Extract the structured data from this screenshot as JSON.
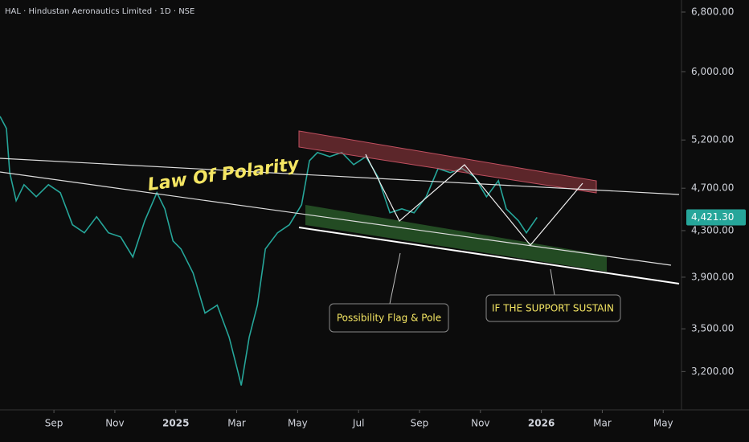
{
  "chart_data": {
    "type": "line",
    "title": "HAL · Hindustan Aeronautics Limited · 1D · NSE",
    "annotations": [
      "Law Of Polarity",
      "Possibility Flag & Pole",
      "IF THE SUPPORT SUSTAIN"
    ],
    "color": "#26a69a",
    "log_scale": true,
    "x": [
      -1.77,
      -1.56,
      -1.45,
      -1.24,
      -0.98,
      -0.58,
      -0.18,
      0.21,
      0.61,
      1.0,
      1.4,
      1.79,
      2.19,
      2.59,
      2.98,
      3.38,
      3.64,
      3.91,
      4.17,
      4.57,
      4.96,
      5.36,
      5.75,
      6.02,
      6.15,
      6.41,
      6.68,
      6.94,
      7.34,
      7.73,
      8.13,
      8.39,
      8.65,
      9.05,
      9.45,
      9.84,
      10.24,
      10.63,
      11.03,
      11.42,
      11.82,
      12.22,
      12.61,
      13.01,
      13.4,
      13.8,
      14.2,
      14.59,
      14.85,
      15.25,
      15.51,
      15.78,
      15.86
    ],
    "values": [
      5464,
      5327,
      4856,
      4578,
      4735,
      4617,
      4735,
      4656,
      4353,
      4280,
      4427,
      4280,
      4244,
      4069,
      4389,
      4656,
      4501,
      4208,
      4138,
      3934,
      3617,
      3678,
      3439,
      3215,
      3108,
      3439,
      3678,
      4138,
      4280,
      4353,
      4540,
      4980,
      5065,
      5022,
      5065,
      4938,
      5022,
      4815,
      4464,
      4501,
      4464,
      4617,
      4897,
      4856,
      4897,
      4815,
      4617,
      4775,
      4501,
      4389,
      4280,
      4389,
      4421.3
    ],
    "last_price": {
      "value": 4421.3,
      "label": "4,421.30"
    },
    "xlim": [
      -1.77,
      20.6
    ],
    "xticks": [
      {
        "value": 0,
        "label": "Sep"
      },
      {
        "value": 2,
        "label": "Nov"
      },
      {
        "value": 4,
        "label": "2025"
      },
      {
        "value": 6,
        "label": "Mar"
      },
      {
        "value": 8,
        "label": "May"
      },
      {
        "value": 10,
        "label": "Jul"
      },
      {
        "value": 12,
        "label": "Sep"
      },
      {
        "value": 14,
        "label": "Nov"
      },
      {
        "value": 16,
        "label": "2026"
      },
      {
        "value": 18,
        "label": "Mar"
      },
      {
        "value": 20,
        "label": "May"
      }
    ],
    "ylim": [
      2953,
      6974
    ],
    "yticks": [
      {
        "value": 6800,
        "label": "6,800.00"
      },
      {
        "value": 6000,
        "label": "6,000.00"
      },
      {
        "value": 5200,
        "label": "5,200.00"
      },
      {
        "value": 4700,
        "label": "4,700.00"
      },
      {
        "value": 4300,
        "label": "4,300.00"
      },
      {
        "value": 3900,
        "label": "3,900.00"
      },
      {
        "value": 3500,
        "label": "3,500.00"
      },
      {
        "value": 3200,
        "label": "3,200.00"
      }
    ]
  }
}
